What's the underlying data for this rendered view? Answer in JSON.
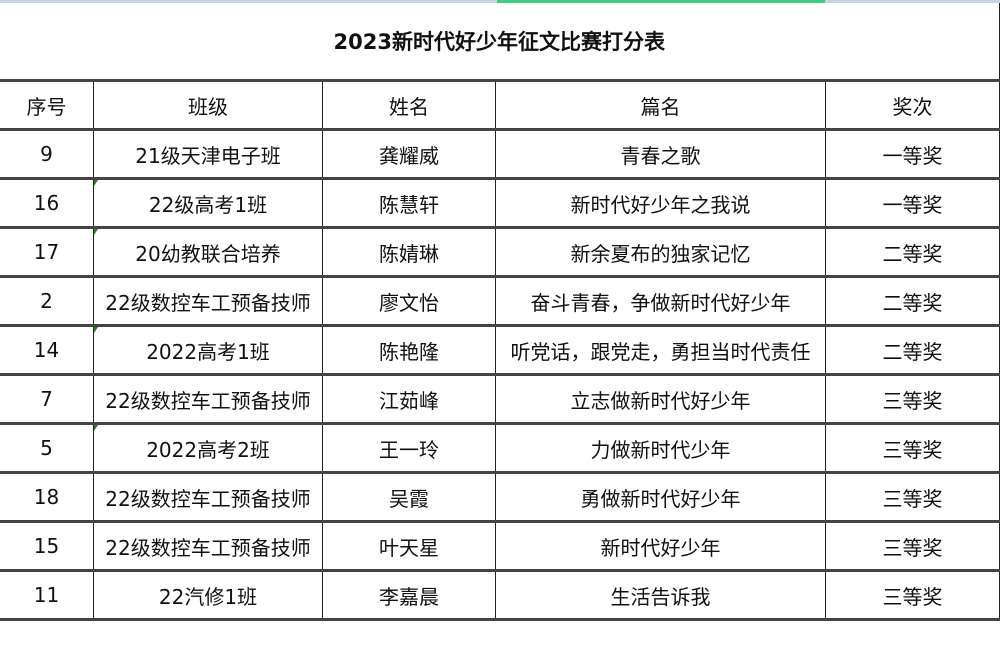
{
  "title": "2023新时代好少年征文比赛打分表",
  "headers": [
    "序号",
    "班级",
    "姓名",
    "篇名",
    "奖次"
  ],
  "rows": [
    {
      "no": "9",
      "class": "21级天津电子班",
      "name": "龚耀威",
      "essay": "青春之歌",
      "award": "一等奖",
      "flag": false
    },
    {
      "no": "16",
      "class": "22级高考1班",
      "name": "陈慧轩",
      "essay": "新时代好少年之我说",
      "award": "一等奖",
      "flag": true
    },
    {
      "no": "17",
      "class": "20幼教联合培养",
      "name": "陈婧琳",
      "essay": "新余夏布的独家记忆",
      "award": "二等奖",
      "flag": true
    },
    {
      "no": "2",
      "class": "22级数控车工预备技师",
      "name": "廖文怡",
      "essay": "奋斗青春，争做新时代好少年",
      "award": "二等奖",
      "flag": false
    },
    {
      "no": "14",
      "class": "2022高考1班",
      "name": "陈艳隆",
      "essay": "听党话，跟党走，勇担当时代责任",
      "award": "二等奖",
      "flag": true
    },
    {
      "no": "7",
      "class": "22级数控车工预备技师",
      "name": "江茹峰",
      "essay": "立志做新时代好少年",
      "award": "三等奖",
      "flag": false
    },
    {
      "no": "5",
      "class": "2022高考2班",
      "name": "王一玲",
      "essay": "力做新时代少年",
      "award": "三等奖",
      "flag": true
    },
    {
      "no": "18",
      "class": "22级数控车工预备技师",
      "name": "吴霞",
      "essay": "勇做新时代好少年",
      "award": "三等奖",
      "flag": false
    },
    {
      "no": "15",
      "class": "22级数控车工预备技师",
      "name": "叶天星",
      "essay": "新时代好少年",
      "award": "三等奖",
      "flag": false
    },
    {
      "no": "11",
      "class": "22汽修1班",
      "name": "李嘉晨",
      "essay": "生活告诉我",
      "award": "三等奖",
      "flag": false
    }
  ],
  "colors": {
    "selection_bar": "#3fcf7f",
    "cell_flag": "#1a8a1a"
  }
}
